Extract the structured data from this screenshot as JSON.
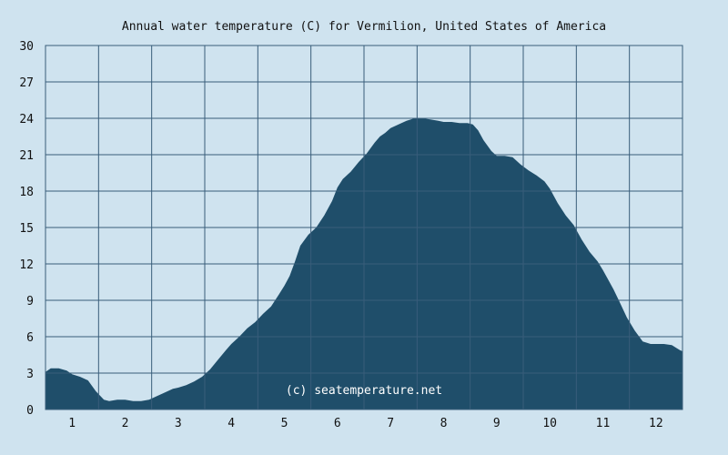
{
  "chart_data": {
    "type": "area",
    "title": "Annual water temperature (C) for Vermilion, United States of America",
    "watermark": "(c) seatemperature.net",
    "xlabel": "",
    "ylabel": "",
    "x_tick_labels": [
      "1",
      "2",
      "3",
      "4",
      "5",
      "6",
      "7",
      "8",
      "9",
      "10",
      "11",
      "12"
    ],
    "y_tick_labels": [
      "0",
      "3",
      "6",
      "9",
      "12",
      "15",
      "18",
      "21",
      "24",
      "27",
      "30"
    ],
    "xlim": [
      0.5,
      12.5
    ],
    "ylim": [
      0,
      30
    ],
    "grid": true,
    "x": [
      0.5,
      0.6,
      0.75,
      0.9,
      1.0,
      1.15,
      1.3,
      1.45,
      1.6,
      1.7,
      1.85,
      2.0,
      2.15,
      2.3,
      2.45,
      2.6,
      2.75,
      2.9,
      3.0,
      3.15,
      3.3,
      3.45,
      3.6,
      3.75,
      3.9,
      4.0,
      4.15,
      4.3,
      4.45,
      4.6,
      4.75,
      4.9,
      5.0,
      5.1,
      5.2,
      5.3,
      5.45,
      5.6,
      5.75,
      5.9,
      6.0,
      6.1,
      6.25,
      6.4,
      6.55,
      6.7,
      6.8,
      6.9,
      7.0,
      7.15,
      7.3,
      7.45,
      7.6,
      7.75,
      7.9,
      8.0,
      8.15,
      8.3,
      8.45,
      8.55,
      8.65,
      8.75,
      8.9,
      9.0,
      9.15,
      9.3,
      9.45,
      9.6,
      9.75,
      9.9,
      10.0,
      10.15,
      10.3,
      10.45,
      10.6,
      10.75,
      10.9,
      11.0,
      11.1,
      11.2,
      11.3,
      11.45,
      11.6,
      11.75,
      11.9,
      12.0,
      12.15,
      12.3,
      12.45,
      12.5
    ],
    "series": [
      {
        "values": [
          3.1,
          3.4,
          3.4,
          3.2,
          2.9,
          2.7,
          2.4,
          1.5,
          0.8,
          0.7,
          0.8,
          0.8,
          0.7,
          0.7,
          0.8,
          1.1,
          1.4,
          1.7,
          1.8,
          2.0,
          2.3,
          2.7,
          3.3,
          4.1,
          4.9,
          5.4,
          6.0,
          6.7,
          7.2,
          7.9,
          8.5,
          9.5,
          10.2,
          11.0,
          12.2,
          13.5,
          14.4,
          15.0,
          16.0,
          17.2,
          18.3,
          19.0,
          19.6,
          20.4,
          21.1,
          22.0,
          22.5,
          22.8,
          23.2,
          23.5,
          23.8,
          24.0,
          24.0,
          23.9,
          23.8,
          23.7,
          23.7,
          23.6,
          23.6,
          23.5,
          23.0,
          22.2,
          21.3,
          20.9,
          20.9,
          20.8,
          20.2,
          19.7,
          19.3,
          18.8,
          18.2,
          17.0,
          16.0,
          15.2,
          14.0,
          13.0,
          12.2,
          11.5,
          10.7,
          9.9,
          9.0,
          7.6,
          6.5,
          5.6,
          5.4,
          5.4,
          5.4,
          5.3,
          4.9,
          4.8
        ]
      }
    ],
    "colors": {
      "background": "#cfe3ef",
      "fill": "#1f4e6a",
      "grid": "#385d7a",
      "text": "#111111",
      "watermark": "#ffffff"
    }
  }
}
